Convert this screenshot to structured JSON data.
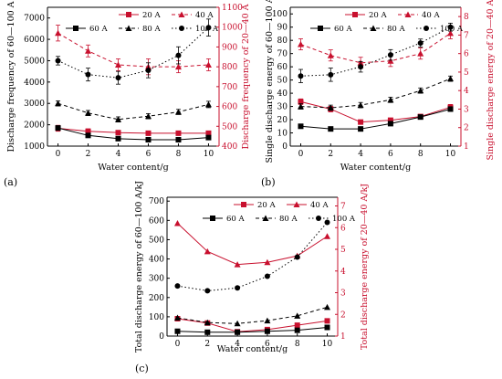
{
  "colors": {
    "black_series": "#000000",
    "red_series": "#c8102e"
  },
  "chart_data": [
    {
      "panel": "(a)",
      "type": "line",
      "xlabel": "Water content/g",
      "ylabel_left": "Discharge frequency of 60—100 A",
      "ylabel_right": "Discharge frequency of 20—40 A",
      "x": [
        0,
        2,
        4,
        6,
        8,
        10
      ],
      "xticks": [
        "0",
        "2",
        "4",
        "6",
        "8",
        "10"
      ],
      "ylim_left": [
        1000,
        7500
      ],
      "yticks_left": [
        "1000",
        "2000",
        "3000",
        "4000",
        "5000",
        "6000",
        "7000"
      ],
      "ylim_right": [
        400,
        1100
      ],
      "yticks_right": [
        "400",
        "500",
        "600",
        "700",
        "800",
        "900",
        "1000",
        "1100"
      ],
      "legend_rows": [
        [
          "20 A",
          "40 A"
        ],
        [
          "60 A",
          "80 A",
          "100 A"
        ]
      ],
      "series": [
        {
          "name": "20 A",
          "axis": "right",
          "color": "red",
          "style": "solid",
          "marker": "square",
          "values": [
            490,
            475,
            468,
            465,
            465,
            465
          ],
          "err": [
            15,
            12,
            10,
            10,
            10,
            10
          ]
        },
        {
          "name": "40 A",
          "axis": "right",
          "color": "red",
          "style": "dashed",
          "marker": "triangle",
          "values": [
            970,
            880,
            810,
            800,
            800,
            810
          ],
          "err": [
            40,
            30,
            30,
            40,
            30,
            30
          ]
        },
        {
          "name": "60 A",
          "axis": "left",
          "color": "black",
          "style": "solid",
          "marker": "square",
          "values": [
            1850,
            1500,
            1350,
            1300,
            1300,
            1400
          ],
          "err": [
            100,
            80,
            80,
            80,
            80,
            80
          ]
        },
        {
          "name": "80 A",
          "axis": "left",
          "color": "black",
          "style": "dashed",
          "marker": "triangle",
          "values": [
            3000,
            2550,
            2250,
            2400,
            2600,
            2950
          ],
          "err": [
            120,
            120,
            120,
            120,
            120,
            150
          ]
        },
        {
          "name": "100 A",
          "axis": "left",
          "color": "black",
          "style": "dotted",
          "marker": "circle",
          "values": [
            5000,
            4350,
            4200,
            4550,
            5250,
            6550
          ],
          "err": [
            200,
            300,
            300,
            350,
            400,
            400
          ]
        }
      ]
    },
    {
      "panel": "(b)",
      "type": "line",
      "xlabel": "Water content/g",
      "ylabel_left": "Single discharge energy of 60—100 A/J",
      "ylabel_right": "Single discharge energy of 20—40 A/J",
      "x": [
        0,
        2,
        4,
        6,
        8,
        10
      ],
      "xticks": [
        "0",
        "2",
        "4",
        "6",
        "8",
        "10"
      ],
      "ylim_left": [
        0,
        105
      ],
      "yticks_left": [
        "0",
        "10",
        "20",
        "30",
        "40",
        "50",
        "60",
        "70",
        "80",
        "90",
        "100"
      ],
      "ylim_right": [
        1,
        8.5
      ],
      "yticks_right": [
        "1",
        "2",
        "3",
        "4",
        "5",
        "6",
        "7",
        "8"
      ],
      "legend_rows": [
        [
          "20 A",
          "40 A"
        ],
        [
          "60 A",
          "80 A",
          "100 A"
        ]
      ],
      "series": [
        {
          "name": "20 A",
          "axis": "right",
          "color": "red",
          "style": "solid",
          "marker": "square",
          "values": [
            3.4,
            3.0,
            2.3,
            2.4,
            2.6,
            3.1
          ],
          "err": [
            0.15,
            0.15,
            0.1,
            0.1,
            0.1,
            0.15
          ]
        },
        {
          "name": "40 A",
          "axis": "right",
          "color": "red",
          "style": "dashed",
          "marker": "triangle",
          "values": [
            6.5,
            5.9,
            5.5,
            5.6,
            6.0,
            7.1
          ],
          "err": [
            0.3,
            0.3,
            0.3,
            0.3,
            0.3,
            0.3
          ]
        },
        {
          "name": "60 A",
          "axis": "left",
          "color": "black",
          "style": "solid",
          "marker": "square",
          "values": [
            15,
            13,
            13,
            17,
            22,
            28
          ],
          "err": [
            1,
            1,
            1,
            1,
            1,
            1
          ]
        },
        {
          "name": "80 A",
          "axis": "left",
          "color": "black",
          "style": "dashed",
          "marker": "triangle",
          "values": [
            30,
            29,
            31,
            35,
            42,
            51
          ],
          "err": [
            2,
            2,
            2,
            2,
            2,
            2
          ]
        },
        {
          "name": "100 A",
          "axis": "left",
          "color": "black",
          "style": "dotted",
          "marker": "circle",
          "values": [
            53,
            54,
            60,
            69,
            78,
            90
          ],
          "err": [
            5,
            5,
            4,
            4,
            3,
            3
          ]
        }
      ]
    },
    {
      "panel": "(c)",
      "type": "line",
      "xlabel": "Water content/g",
      "ylabel_left": "Total discharge energy of 60—100 A/kJ",
      "ylabel_right": "Total discharge energy of 20—40 A/kJ",
      "x": [
        0,
        2,
        4,
        6,
        8,
        10
      ],
      "xticks": [
        "0",
        "2",
        "4",
        "6",
        "8",
        "10"
      ],
      "ylim_left": [
        0,
        720
      ],
      "yticks_left": [
        "0",
        "100",
        "200",
        "300",
        "400",
        "500",
        "600",
        "700"
      ],
      "ylim_right": [
        1,
        7.4
      ],
      "yticks_right": [
        "1",
        "2",
        "3",
        "4",
        "5",
        "6",
        "7"
      ],
      "legend_rows": [
        [
          "20 A",
          "40 A"
        ],
        [
          "60 A",
          "80 A",
          "100 A"
        ]
      ],
      "series": [
        {
          "name": "20 A",
          "axis": "right",
          "color": "red",
          "style": "solid",
          "marker": "square",
          "values": [
            1.8,
            1.6,
            1.2,
            1.3,
            1.5,
            1.7
          ],
          "err": [
            0,
            0,
            0,
            0,
            0,
            0
          ]
        },
        {
          "name": "40 A",
          "axis": "right",
          "color": "red",
          "style": "solid",
          "marker": "triangle",
          "values": [
            6.2,
            4.9,
            4.3,
            4.4,
            4.7,
            5.6
          ],
          "err": [
            0,
            0,
            0,
            0,
            0,
            0
          ]
        },
        {
          "name": "60 A",
          "axis": "left",
          "color": "black",
          "style": "solid",
          "marker": "square",
          "values": [
            25,
            20,
            20,
            25,
            30,
            45
          ],
          "err": [
            0,
            0,
            0,
            0,
            0,
            0
          ]
        },
        {
          "name": "80 A",
          "axis": "left",
          "color": "black",
          "style": "dashed",
          "marker": "triangle",
          "values": [
            95,
            70,
            65,
            80,
            105,
            150
          ],
          "err": [
            0,
            0,
            0,
            0,
            0,
            0
          ]
        },
        {
          "name": "100 A",
          "axis": "left",
          "color": "black",
          "style": "dotted",
          "marker": "circle",
          "values": [
            260,
            235,
            250,
            310,
            410,
            590
          ],
          "err": [
            0,
            0,
            0,
            0,
            0,
            0
          ]
        }
      ]
    }
  ]
}
